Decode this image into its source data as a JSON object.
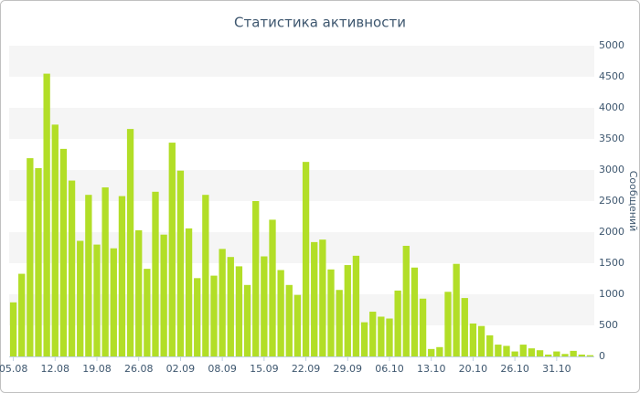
{
  "chart_data": {
    "type": "bar",
    "title": "Статистика активности",
    "y_label": "Сообщений",
    "categories": [
      "05.08",
      null,
      null,
      null,
      null,
      "12.08",
      null,
      null,
      null,
      null,
      "19.08",
      null,
      null,
      null,
      null,
      "26.08",
      null,
      null,
      null,
      null,
      "02.09",
      null,
      null,
      null,
      null,
      "08.09",
      null,
      null,
      null,
      null,
      "15.09",
      null,
      null,
      null,
      null,
      "22.09",
      null,
      null,
      null,
      null,
      "29.09",
      null,
      null,
      null,
      null,
      "06.10",
      null,
      null,
      null,
      null,
      "13.10",
      null,
      null,
      null,
      null,
      "20.10",
      null,
      null,
      null,
      null,
      "26.10",
      null,
      null,
      null,
      null,
      "31.10",
      null,
      null,
      null,
      null
    ],
    "values": [
      870,
      1330,
      3190,
      3030,
      4550,
      3730,
      3340,
      2830,
      1860,
      2600,
      1800,
      2720,
      1740,
      2580,
      3660,
      2030,
      1410,
      2650,
      1960,
      3440,
      2990,
      2060,
      1260,
      2600,
      1300,
      1730,
      1600,
      1450,
      1150,
      2500,
      1610,
      2200,
      1390,
      1150,
      990,
      3130,
      1840,
      1880,
      1400,
      1070,
      1470,
      1620,
      550,
      720,
      640,
      610,
      1060,
      1780,
      1430,
      930,
      120,
      150,
      1040,
      1490,
      940,
      530,
      490,
      340,
      190,
      170,
      80,
      190,
      130,
      100,
      30,
      80,
      40,
      90,
      30,
      20
    ],
    "color": "#b2de27",
    "ylim": [
      0,
      5000
    ],
    "yticks": [
      0,
      500,
      1000,
      1500,
      2000,
      2500,
      3000,
      3500,
      4000,
      4500,
      5000
    ],
    "grid": true
  }
}
